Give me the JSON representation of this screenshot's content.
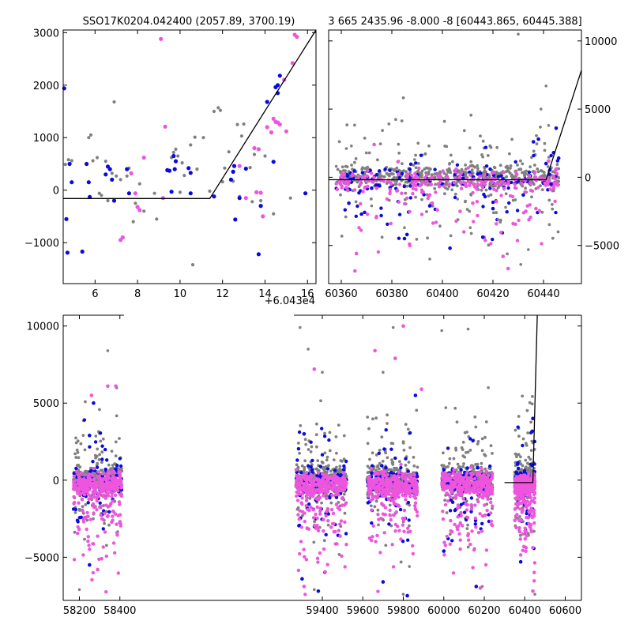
{
  "chart_data": [
    {
      "type": "scatter",
      "title": "SSO17K0204.042400 (2057.89, 3700.19)",
      "x_offset_label": "+6.043e4",
      "xlim": [
        4.5,
        16.4
      ],
      "ylim": [
        -1780,
        3050
      ],
      "xticks": [
        6,
        8,
        10,
        12,
        14,
        16
      ],
      "yticks": [
        -1000,
        0,
        1000,
        2000,
        3000
      ],
      "yticks_side": "left",
      "model_line": [
        [
          4.5,
          -160
        ],
        [
          11.4,
          -160
        ],
        [
          16.4,
          3050
        ]
      ],
      "colors": {
        "grey": "#808080",
        "blue": "#0a0ae0",
        "magenta": "#ee55dd",
        "model": "#000000"
      },
      "series": [
        {
          "color_key": "blue",
          "points": [
            [
              4.55,
              1940
            ],
            [
              4.65,
              -550
            ],
            [
              4.7,
              -1190
            ],
            [
              4.8,
              500
            ],
            [
              4.9,
              150
            ],
            [
              5.4,
              -1170
            ],
            [
              5.6,
              500
            ],
            [
              5.7,
              150
            ],
            [
              5.75,
              -130
            ],
            [
              6.5,
              300
            ],
            [
              6.6,
              450
            ],
            [
              6.7,
              400
            ],
            [
              6.8,
              200
            ],
            [
              6.9,
              -200
            ],
            [
              7.5,
              400
            ],
            [
              7.6,
              -60
            ],
            [
              9.4,
              380
            ],
            [
              9.5,
              370
            ],
            [
              9.6,
              -30
            ],
            [
              9.7,
              650
            ],
            [
              9.75,
              400
            ],
            [
              9.8,
              550
            ],
            [
              10.4,
              420
            ],
            [
              10.5,
              330
            ],
            [
              10.5,
              -60
            ],
            [
              11.6,
              -120
            ],
            [
              12.4,
              200
            ],
            [
              12.5,
              350
            ],
            [
              12.55,
              460
            ],
            [
              12.6,
              -560
            ],
            [
              12.8,
              -150
            ],
            [
              13.1,
              410
            ],
            [
              13.7,
              -1220
            ],
            [
              13.8,
              -300
            ],
            [
              14.1,
              1680
            ],
            [
              14.4,
              540
            ],
            [
              14.5,
              1960
            ],
            [
              14.6,
              2000
            ],
            [
              14.7,
              2180
            ],
            [
              14.6,
              1850
            ],
            [
              15.9,
              -60
            ]
          ]
        },
        {
          "color_key": "magenta",
          "points": [
            [
              7.2,
              -950
            ],
            [
              7.3,
              -900
            ],
            [
              7.7,
              320
            ],
            [
              7.9,
              -60
            ],
            [
              8.0,
              -320
            ],
            [
              8.1,
              -380
            ],
            [
              8.3,
              620
            ],
            [
              9.2,
              -150
            ],
            [
              9.3,
              1210
            ],
            [
              9.1,
              2880
            ],
            [
              12.8,
              460
            ],
            [
              13.1,
              -150
            ],
            [
              13.5,
              800
            ],
            [
              13.6,
              -40
            ],
            [
              13.7,
              780
            ],
            [
              13.8,
              -50
            ],
            [
              13.9,
              -500
            ],
            [
              14.1,
              1200
            ],
            [
              14.3,
              1100
            ],
            [
              14.4,
              1360
            ],
            [
              14.5,
              1300
            ],
            [
              14.6,
              1290
            ],
            [
              14.7,
              1250
            ],
            [
              14.9,
              2100
            ],
            [
              15.0,
              1120
            ],
            [
              15.3,
              2420
            ],
            [
              15.4,
              2960
            ],
            [
              15.5,
              2920
            ]
          ]
        },
        {
          "color_key": "grey",
          "points": [
            [
              4.6,
              490
            ],
            [
              4.75,
              580
            ],
            [
              4.9,
              560
            ],
            [
              5.7,
              1000
            ],
            [
              5.8,
              1050
            ],
            [
              5.9,
              560
            ],
            [
              6.1,
              620
            ],
            [
              6.2,
              -60
            ],
            [
              6.3,
              -100
            ],
            [
              6.5,
              550
            ],
            [
              6.6,
              -200
            ],
            [
              6.9,
              1680
            ],
            [
              6.8,
              320
            ],
            [
              7.0,
              270
            ],
            [
              7.2,
              200
            ],
            [
              7.5,
              270
            ],
            [
              7.6,
              420
            ],
            [
              7.8,
              -600
            ],
            [
              7.9,
              -250
            ],
            [
              8.1,
              120
            ],
            [
              8.3,
              -400
            ],
            [
              8.8,
              -60
            ],
            [
              8.9,
              -550
            ],
            [
              9.6,
              620
            ],
            [
              9.7,
              720
            ],
            [
              9.8,
              780
            ],
            [
              9.9,
              650
            ],
            [
              10.0,
              -40
            ],
            [
              10.1,
              520
            ],
            [
              10.2,
              280
            ],
            [
              10.5,
              860
            ],
            [
              10.6,
              -1420
            ],
            [
              10.7,
              1010
            ],
            [
              10.8,
              400
            ],
            [
              11.1,
              1000
            ],
            [
              11.4,
              -20
            ],
            [
              11.6,
              1500
            ],
            [
              11.8,
              1570
            ],
            [
              11.9,
              1520
            ],
            [
              12.0,
              160
            ],
            [
              12.1,
              420
            ],
            [
              12.3,
              730
            ],
            [
              12.5,
              170
            ],
            [
              12.7,
              1250
            ],
            [
              12.8,
              -120
            ],
            [
              12.9,
              1030
            ],
            [
              13.0,
              1260
            ],
            [
              13.3,
              430
            ],
            [
              13.4,
              -220
            ],
            [
              13.5,
              680
            ],
            [
              13.8,
              -200
            ],
            [
              14.0,
              650
            ],
            [
              14.4,
              -450
            ],
            [
              15.2,
              -150
            ]
          ]
        }
      ]
    },
    {
      "type": "scatter",
      "title": "3 665 2435.96 -8.000 -8 [60443.865, 60445.388]",
      "xlim": [
        60355,
        60455
      ],
      "ylim": [
        -7800,
        10800
      ],
      "xticks": [
        60360,
        60380,
        60400,
        60420,
        60440
      ],
      "yticks": [
        -5000,
        0,
        5000,
        10000
      ],
      "yticks_side": "right",
      "model_line": [
        [
          60355,
          -180
        ],
        [
          60441,
          -180
        ],
        [
          60455,
          7850
        ]
      ],
      "density": {
        "seed": 11,
        "x_range": [
          60358,
          60446
        ],
        "y_center": 0,
        "spread": 420,
        "outlier_spread": 3500,
        "grey_count": 650,
        "blue_count": 130,
        "magenta_count": 240
      },
      "series": [
        {
          "color_key": "blue",
          "points": [
            [
              60363,
              -1900
            ],
            [
              60368,
              -2700
            ],
            [
              60372,
              -800
            ],
            [
              60385,
              -4500
            ],
            [
              60386,
              -4200
            ],
            [
              60395,
              -2100
            ],
            [
              60403,
              -5200
            ],
            [
              60416,
              -4400
            ],
            [
              60420,
              -2300
            ],
            [
              60432,
              -1300
            ],
            [
              60436,
              2600
            ],
            [
              60438,
              2800
            ],
            [
              60441,
              1000
            ],
            [
              60443,
              -500
            ],
            [
              60444,
              1800
            ],
            [
              60445,
              3600
            ],
            [
              60446,
              1400
            ]
          ]
        },
        {
          "color_key": "magenta",
          "points": [
            [
              60362,
              -300
            ],
            [
              60366,
              -5600
            ],
            [
              60373,
              2400
            ],
            [
              60374,
              -800
            ],
            [
              60382,
              -1000
            ],
            [
              60387,
              -4900
            ],
            [
              60395,
              -1300
            ],
            [
              60396,
              -1900
            ],
            [
              60398,
              -2400
            ],
            [
              60407,
              -2500
            ],
            [
              60412,
              -1900
            ],
            [
              60424,
              -5800
            ],
            [
              60426,
              -6700
            ],
            [
              60428,
              -3400
            ],
            [
              60433,
              -2500
            ],
            [
              60437,
              -2300
            ],
            [
              60442,
              1200
            ],
            [
              60444,
              -700
            ],
            [
              60445,
              600
            ]
          ]
        },
        {
          "color_key": "grey",
          "points": [
            [
              60358,
              800
            ],
            [
              60362,
              2100
            ],
            [
              60364,
              2300
            ],
            [
              60372,
              -2100
            ],
            [
              60379,
              -1700
            ],
            [
              60385,
              -3700
            ],
            [
              60389,
              1300
            ],
            [
              60395,
              -6000
            ],
            [
              60406,
              -1600
            ],
            [
              60409,
              -1800
            ],
            [
              60411,
              -3700
            ],
            [
              60422,
              -3100
            ],
            [
              60425,
              -2200
            ],
            [
              60428,
              -1700
            ],
            [
              60430,
              10500
            ],
            [
              60431,
              -6400
            ],
            [
              60434,
              -5300
            ],
            [
              60439,
              5000
            ],
            [
              60441,
              6700
            ],
            [
              60442,
              3800
            ],
            [
              60444,
              -1000
            ]
          ]
        }
      ]
    },
    {
      "type": "scatter",
      "title": "",
      "xlim": [
        58120,
        60680
      ],
      "ylim": [
        -7800,
        10700
      ],
      "xticks": [
        58200,
        58400,
        59400,
        59600,
        59800,
        60000,
        60200,
        60400,
        60600
      ],
      "yticks": [
        -5000,
        0,
        5000,
        10000
      ],
      "yticks_side": "left",
      "broken_axis_after": 58420,
      "broken_axis_resume": 59260,
      "model_line": [
        [
          60300,
          -160
        ],
        [
          60440,
          -160
        ],
        [
          60462,
          10700
        ]
      ],
      "seasons": [
        {
          "x_range": [
            58170,
            58410
          ],
          "spread": 420,
          "outlier_spread": 3300
        },
        {
          "x_range": [
            59270,
            59520
          ],
          "spread": 430,
          "outlier_spread": 3400
        },
        {
          "x_range": [
            59620,
            59870
          ],
          "spread": 430,
          "outlier_spread": 3300
        },
        {
          "x_range": [
            59990,
            60240
          ],
          "spread": 430,
          "outlier_spread": 3200
        },
        {
          "x_range": [
            60350,
            60450
          ],
          "spread": 380,
          "outlier_spread": 3000
        }
      ],
      "density": {
        "seed": 5,
        "grey_per_season": 360,
        "blue_per_season": 110,
        "magenta_per_season": 330
      },
      "series": [
        {
          "color_key": "grey",
          "points": [
            [
              58340,
              8400
            ],
            [
              59290,
              9900
            ],
            [
              59330,
              8500
            ],
            [
              59750,
              9900
            ],
            [
              59990,
              9700
            ],
            [
              60120,
              9800
            ],
            [
              60220,
              6000
            ],
            [
              60010,
              4700
            ],
            [
              59400,
              7000
            ],
            [
              59700,
              7000
            ],
            [
              58200,
              -7100
            ],
            [
              59360,
              -7100
            ],
            [
              59800,
              -7400
            ],
            [
              60450,
              -7400
            ],
            [
              60190,
              -6900
            ],
            [
              59830,
              -5600
            ]
          ]
        },
        {
          "color_key": "magenta",
          "points": [
            [
              58380,
              6100
            ],
            [
              58340,
              6100
            ],
            [
              59800,
              10000
            ],
            [
              59660,
              8400
            ],
            [
              59360,
              7200
            ],
            [
              59760,
              7900
            ],
            [
              59890,
              5900
            ],
            [
              59310,
              -6900
            ],
            [
              58290,
              -5800
            ],
            [
              58310,
              -5100
            ],
            [
              60440,
              -7200
            ],
            [
              60180,
              -7000
            ],
            [
              58260,
              5500
            ]
          ]
        },
        {
          "color_key": "blue",
          "points": [
            [
              58270,
              5000
            ],
            [
              58250,
              2900
            ],
            [
              59300,
              -6400
            ],
            [
              59380,
              -7200
            ],
            [
              59700,
              -6600
            ],
            [
              59820,
              -7500
            ],
            [
              59860,
              5500
            ],
            [
              60000,
              -4600
            ],
            [
              60090,
              -8000
            ],
            [
              60440,
              4000
            ],
            [
              60380,
              -5300
            ],
            [
              60160,
              -6900
            ],
            [
              58250,
              -5500
            ],
            [
              59310,
              3000
            ]
          ]
        }
      ]
    }
  ]
}
